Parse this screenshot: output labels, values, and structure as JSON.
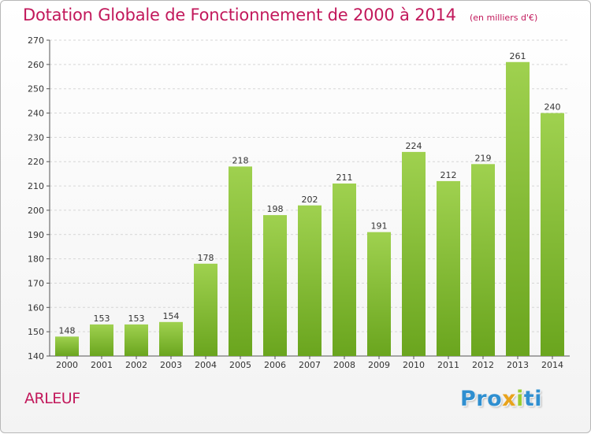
{
  "title": "Dotation Globale de Fonctionnement de 2000 à 2014",
  "subtitle": "(en milliers d'€)",
  "commune": "ARLEUF",
  "brand": {
    "parts": [
      "Pro",
      "x",
      "i",
      "ti"
    ],
    "colors": [
      "#2f8fd0",
      "#e8a31c",
      "#9acd32"
    ]
  },
  "colors": {
    "title": "#c2185b",
    "bar_light": "#9fd14f",
    "bar_dark": "#6aa51e",
    "grid": "#d6d6d6"
  },
  "chart_data": {
    "type": "bar",
    "categories": [
      "2000",
      "2001",
      "2002",
      "2003",
      "2004",
      "2005",
      "2006",
      "2007",
      "2008",
      "2009",
      "2010",
      "2011",
      "2012",
      "2013",
      "2014"
    ],
    "values": [
      148,
      153,
      153,
      154,
      178,
      218,
      198,
      202,
      211,
      191,
      224,
      212,
      219,
      261,
      240
    ],
    "ylim": [
      140,
      270
    ],
    "yticks": [
      140,
      150,
      160,
      170,
      180,
      190,
      200,
      210,
      220,
      230,
      240,
      250,
      260,
      270
    ],
    "grid": true,
    "legend": "none"
  }
}
